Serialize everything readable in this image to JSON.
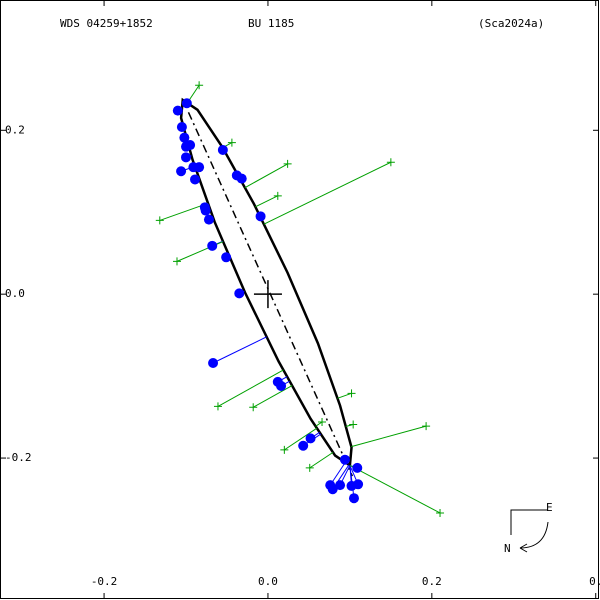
{
  "chart_data": {
    "type": "scatter",
    "title": "WDS 04259+1852",
    "subtitle": "BU 1185",
    "reference": "(Sca2024a)",
    "xlim": [
      -0.327,
      0.404
    ],
    "ylim": [
      -0.372,
      0.359
    ],
    "xticks": [
      -0.2,
      {
        "value": 0,
        "label": "0.0"
      },
      0.2,
      {
        "value": 0.4,
        "label": "0."
      }
    ],
    "yticks": [
      -0.2,
      {
        "value": 0,
        "label": "0.0"
      },
      0.2
    ],
    "orbit": {
      "color": "#000000",
      "x": [
        0.1,
        0.102,
        0.088,
        0.061,
        0.024,
        -0.017,
        -0.056,
        -0.086,
        -0.104,
        -0.106,
        -0.092,
        -0.065,
        -0.028,
        0.013,
        0.052,
        0.082
      ],
      "y": [
        -0.209,
        -0.187,
        -0.136,
        -0.06,
        0.026,
        0.11,
        0.18,
        0.225,
        0.237,
        0.215,
        0.164,
        0.088,
        0.002,
        -0.082,
        -0.152,
        -0.197
      ]
    },
    "line_of_nodes": {
      "x": [
        -0.097,
        0.103
      ],
      "y": [
        0.222,
        -0.222
      ]
    },
    "series": [
      {
        "color": "#0000ff",
        "x": [
          -0.11,
          -0.099,
          -0.105,
          -0.102,
          -0.1,
          -0.095,
          -0.1,
          -0.106,
          -0.091,
          -0.084,
          -0.089,
          -0.077,
          -0.076,
          -0.072,
          -0.068,
          -0.051,
          -0.055,
          -0.038,
          -0.032,
          -0.009,
          -0.035,
          -0.067,
          0.012,
          0.016,
          0.043,
          0.052,
          0.094,
          0.076,
          0.079,
          0.088,
          0.102,
          0.109,
          0.11,
          0.105
        ],
        "y": [
          0.224,
          0.233,
          0.204,
          0.191,
          0.18,
          0.182,
          0.167,
          0.15,
          0.155,
          0.155,
          0.14,
          0.106,
          0.102,
          0.091,
          0.059,
          0.045,
          0.176,
          0.145,
          0.141,
          0.095,
          0.001,
          -0.084,
          -0.107,
          -0.112,
          -0.185,
          -0.176,
          -0.202,
          -0.233,
          -0.238,
          -0.233,
          -0.234,
          -0.212,
          -0.232,
          -0.249
        ]
      },
      {
        "color": "#00a000",
        "x": [
          -0.084,
          0.024,
          0.15,
          -0.132,
          -0.111,
          0.012,
          -0.061,
          -0.018,
          0.193,
          0.102,
          0.21,
          0.02,
          0.051,
          0.066,
          0.104,
          -0.044
        ],
        "y": [
          0.255,
          0.159,
          0.161,
          0.09,
          0.04,
          0.12,
          -0.137,
          -0.138,
          -0.161,
          -0.121,
          -0.267,
          -0.19,
          -0.212,
          -0.156,
          -0.159,
          0.185
        ]
      }
    ],
    "compass": {
      "east": "E",
      "north": "N"
    }
  }
}
